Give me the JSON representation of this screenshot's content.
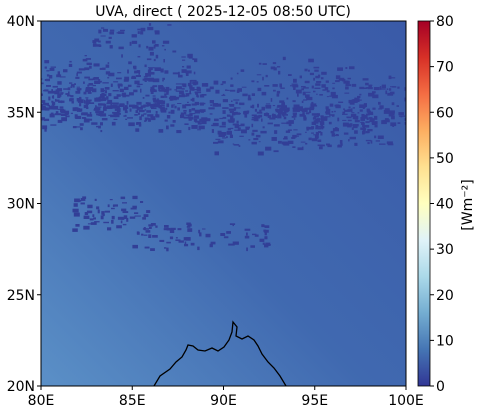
{
  "title": "UVA, direct ( 2025-12-05 08:50 UTC)",
  "map": {
    "lon_range": [
      80,
      100
    ],
    "lat_range": [
      20,
      40
    ],
    "x_ticks": [
      "80E",
      "85E",
      "90E",
      "95E",
      "100E"
    ],
    "y_ticks": [
      "20N",
      "25N",
      "30N",
      "35N",
      "40N"
    ]
  },
  "colorbar": {
    "label": "[Wm⁻²]",
    "min": 0,
    "max": 80,
    "ticks": [
      "0",
      "10",
      "20",
      "30",
      "40",
      "50",
      "60",
      "70",
      "80"
    ],
    "colormap": "RdYlBu_r",
    "colors": [
      "#313695",
      "#4575b4",
      "#74add1",
      "#abd9e9",
      "#e0f3f8",
      "#ffffbf",
      "#fee090",
      "#fdae61",
      "#f46d43",
      "#d73027",
      "#a50026"
    ]
  },
  "field": {
    "background_low": "#3b5aa8",
    "background_high": "#5a8cc6",
    "cloud_color": "#323f97"
  }
}
